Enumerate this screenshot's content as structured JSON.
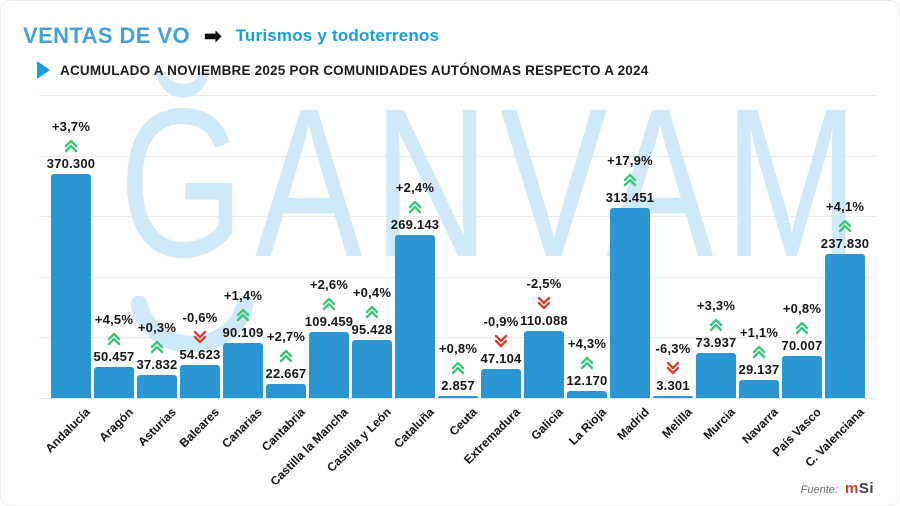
{
  "header": {
    "title": "VENTAS DE VO",
    "arrow_icon": "➡",
    "vehicle_type": "Turismos y todoterrenos",
    "subtitle": "ACUMULADO A NOVIEMBRE 2025 POR COMUNIDADES AUTÓNOMAS RESPECTO A 2024"
  },
  "watermark": {
    "text": "ĞANVAM"
  },
  "footer": {
    "source_label": "Fuente:",
    "logo_m": "m",
    "logo_rest": "Si"
  },
  "icons": {
    "header_arrow": "right-arrow",
    "subtitle_bullet": "play-triangle",
    "trend_up": "double-chevron-up",
    "trend_down": "double-chevron-down"
  },
  "colors": {
    "bar": "#2a96d4",
    "title_blue": "#4aa0d2",
    "accent_blue": "#18a0da",
    "up_green": "#3ec47d",
    "down_red": "#cf4434",
    "watermark_blue": "#cfe9f8",
    "logo_red": "#d23b2f"
  },
  "chart_data": {
    "type": "bar",
    "title": "VENTAS DE VO — Turismos y todoterrenos",
    "subtitle": "ACUMULADO A NOVIEMBRE 2025 POR COMUNIDADES AUTÓNOMAS RESPECTO A 2024",
    "xlabel": "",
    "ylabel": "",
    "ylim": [
      0,
      500000
    ],
    "grid_interval": 100000,
    "grid": true,
    "legend_position": "none",
    "categories": [
      "Andalucía",
      "Aragón",
      "Asturias",
      "Baleares",
      "Canarias",
      "Cantabria",
      "Castilla la Mancha",
      "Castilla y León",
      "Cataluña",
      "Ceuta",
      "Extremadura",
      "Galicia",
      "La Rioja",
      "Madrid",
      "Melilla",
      "Murcia",
      "Navarra",
      "País Vasco",
      "C. Valenciana"
    ],
    "values": [
      370300,
      50457,
      37832,
      54623,
      90109,
      22667,
      109459,
      95428,
      269143,
      2857,
      47104,
      110088,
      12170,
      313451,
      3301,
      73937,
      29137,
      70007,
      237830
    ],
    "value_labels": [
      "370.300",
      "50.457",
      "37.832",
      "54.623",
      "90.109",
      "22.667",
      "109.459",
      "95.428",
      "269.143",
      "2.857",
      "47.104",
      "110.088",
      "12.170",
      "313.451",
      "3.301",
      "73.937",
      "29.137",
      "70.007",
      "237.830"
    ],
    "pct_change": [
      3.7,
      4.5,
      0.3,
      -0.6,
      1.4,
      2.7,
      2.6,
      0.4,
      2.4,
      0.8,
      -0.9,
      -2.5,
      4.3,
      17.9,
      -6.3,
      3.3,
      1.1,
      0.8,
      4.1
    ],
    "pct_labels": [
      "+3,7%",
      "+4,5%",
      "+0,3%",
      "-0,6%",
      "+1,4%",
      "+2,7%",
      "+2,6%",
      "+0,4%",
      "+2,4%",
      "+0,8%",
      "-0,9%",
      "-2,5%",
      "+4,3%",
      "+17,9%",
      "-6,3%",
      "+3,3%",
      "+1,1%",
      "+0,8%",
      "+4,1%"
    ]
  }
}
